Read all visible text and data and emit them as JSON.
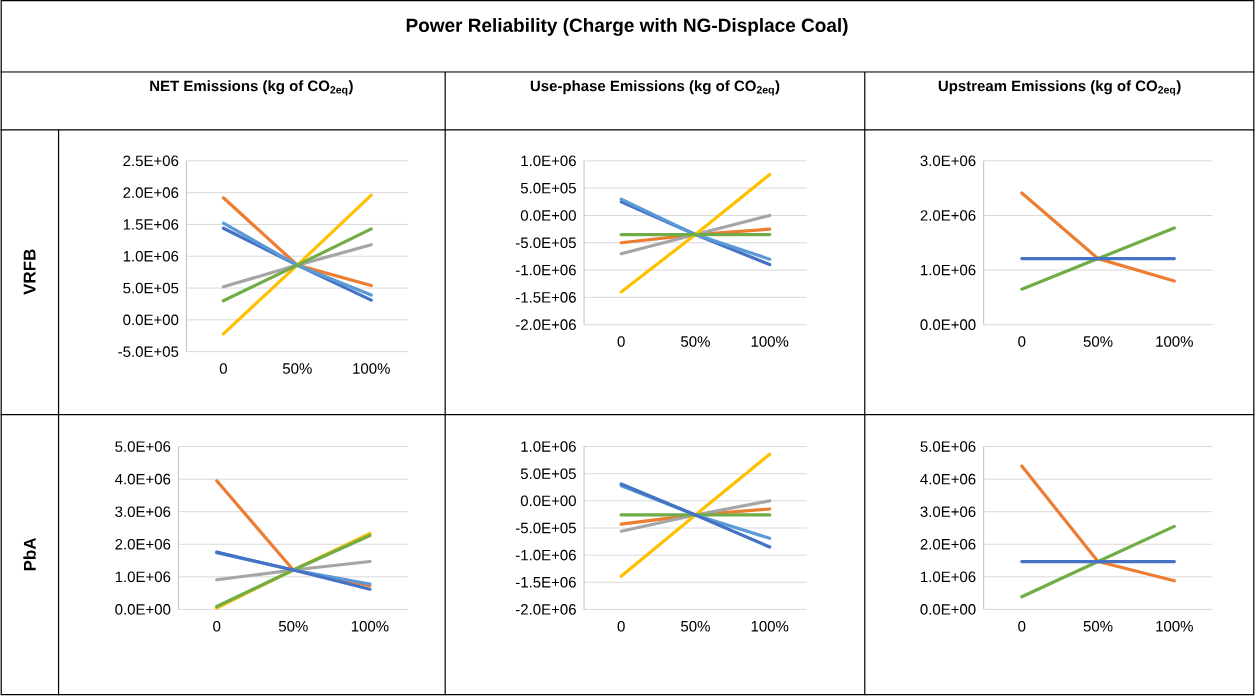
{
  "chart_data": [
    {
      "type": "line",
      "title": "NET Emissions (kg of CO$_{2eq}$)",
      "ylabel": "VRFB",
      "annotations": [
        "Power Reliability (Charge with NG-Displace Coal)"
      ],
      "categories": [
        "0",
        "50%",
        "100%"
      ],
      "ylim": [
        -500000,
        2500000
      ],
      "yticks": [
        {
          "value": -500000,
          "label": "-5.0E+05"
        },
        {
          "value": 0,
          "label": "0.0E+00"
        },
        {
          "value": 500000,
          "label": "5.0E+05"
        },
        {
          "value": 1000000,
          "label": "1.0E+06"
        },
        {
          "value": 1500000,
          "label": "1.5E+06"
        },
        {
          "value": 2000000,
          "label": "2.0E+06"
        },
        {
          "value": 2500000,
          "label": "2.5E+06"
        }
      ],
      "grid": "y",
      "line_style": "solid",
      "series": [
        {
          "color": "#4472c4",
          "values": [
            1440000,
            860000,
            310000
          ]
        },
        {
          "color": "#ed7d31",
          "values": [
            1920000,
            860000,
            540000
          ]
        },
        {
          "color": "#a5a5a5",
          "values": [
            520000,
            860000,
            1180000
          ]
        },
        {
          "color": "#ffc000",
          "values": [
            -220000,
            860000,
            1960000
          ]
        },
        {
          "color": "#5b9bd5",
          "values": [
            1520000,
            860000,
            390000
          ]
        },
        {
          "color": "#70ad47",
          "values": [
            300000,
            860000,
            1430000
          ]
        }
      ]
    },
    {
      "type": "line",
      "title": "Use-phase Emissions (kg of CO$_{2eq}$)",
      "categories": [
        "0",
        "50%",
        "100%"
      ],
      "ylim": [
        -2000000,
        1000000
      ],
      "yticks": [
        {
          "value": -2000000,
          "label": "-2.0E+06"
        },
        {
          "value": -1500000,
          "label": "-1.5E+06"
        },
        {
          "value": -1000000,
          "label": "-1.0E+06"
        },
        {
          "value": -500000,
          "label": "-5.0E+05"
        },
        {
          "value": 0,
          "label": "0.0E+00"
        },
        {
          "value": 500000,
          "label": "5.0E+05"
        },
        {
          "value": 1000000,
          "label": "1.0E+06"
        }
      ],
      "grid": "y",
      "line_style": "solid",
      "series": [
        {
          "color": "#4472c4",
          "values": [
            250000,
            -350000,
            -900000
          ]
        },
        {
          "color": "#ed7d31",
          "values": [
            -500000,
            -350000,
            -250000
          ]
        },
        {
          "color": "#a5a5a5",
          "values": [
            -700000,
            -350000,
            0
          ]
        },
        {
          "color": "#ffc000",
          "values": [
            -1400000,
            -350000,
            750000
          ]
        },
        {
          "color": "#5b9bd5",
          "values": [
            300000,
            -350000,
            -800000
          ]
        },
        {
          "color": "#70ad47",
          "values": [
            -350000,
            -350000,
            -350000
          ]
        }
      ]
    },
    {
      "type": "line",
      "title": "Upstream Emissions (kg of CO$_{2eq}$)",
      "categories": [
        "0",
        "50%",
        "100%"
      ],
      "ylim": [
        0,
        3000000
      ],
      "yticks": [
        {
          "value": 0,
          "label": "0.0E+00"
        },
        {
          "value": 1000000,
          "label": "1.0E+06"
        },
        {
          "value": 2000000,
          "label": "2.0E+06"
        },
        {
          "value": 3000000,
          "label": "3.0E+06"
        }
      ],
      "grid": "y",
      "line_style": "solid",
      "series": [
        {
          "color": "#ed7d31",
          "values": [
            2410000,
            1210000,
            800000
          ]
        },
        {
          "color": "#70ad47",
          "values": [
            650000,
            1210000,
            1770000
          ]
        },
        {
          "color": "#4472c4",
          "values": [
            1210000,
            1210000,
            1210000
          ]
        }
      ]
    },
    {
      "type": "line",
      "ylabel": "PbA",
      "categories": [
        "0",
        "50%",
        "100%"
      ],
      "ylim": [
        0,
        5000000
      ],
      "yticks": [
        {
          "value": 0,
          "label": "0.0E+00"
        },
        {
          "value": 1000000,
          "label": "1.0E+06"
        },
        {
          "value": 2000000,
          "label": "2.0E+06"
        },
        {
          "value": 3000000,
          "label": "3.0E+06"
        },
        {
          "value": 4000000,
          "label": "4.0E+06"
        },
        {
          "value": 5000000,
          "label": "5.0E+06"
        }
      ],
      "grid": "y",
      "line_style": "solid",
      "series": [
        {
          "color": "#ed7d31",
          "values": [
            3950000,
            1210000,
            730000
          ]
        },
        {
          "color": "#a5a5a5",
          "values": [
            910000,
            1210000,
            1470000
          ]
        },
        {
          "color": "#ffc000",
          "values": [
            40000,
            1210000,
            2330000
          ]
        },
        {
          "color": "#70ad47",
          "values": [
            90000,
            1210000,
            2270000
          ]
        },
        {
          "color": "#5b9bd5",
          "values": [
            1740000,
            1210000,
            780000
          ]
        },
        {
          "color": "#4472c4",
          "values": [
            1760000,
            1210000,
            620000
          ]
        }
      ]
    },
    {
      "type": "line",
      "categories": [
        "0",
        "50%",
        "100%"
      ],
      "ylim": [
        -2000000,
        1000000
      ],
      "yticks": [
        {
          "value": -2000000,
          "label": "-2.0E+06"
        },
        {
          "value": -1500000,
          "label": "-1.5E+06"
        },
        {
          "value": -1000000,
          "label": "-1.0E+06"
        },
        {
          "value": -500000,
          "label": "-5.0E+05"
        },
        {
          "value": 0,
          "label": "0.0E+00"
        },
        {
          "value": 500000,
          "label": "5.0E+05"
        },
        {
          "value": 1000000,
          "label": "1.0E+06"
        }
      ],
      "grid": "y",
      "line_style": "solid",
      "series": [
        {
          "color": "#ed7d31",
          "values": [
            -430000,
            -260000,
            -150000
          ]
        },
        {
          "color": "#a5a5a5",
          "values": [
            -560000,
            -260000,
            0
          ]
        },
        {
          "color": "#ffc000",
          "values": [
            -1390000,
            -260000,
            860000
          ]
        },
        {
          "color": "#70ad47",
          "values": [
            -260000,
            -260000,
            -260000
          ]
        },
        {
          "color": "#5b9bd5",
          "values": [
            280000,
            -260000,
            -690000
          ]
        },
        {
          "color": "#4472c4",
          "values": [
            310000,
            -260000,
            -850000
          ]
        }
      ]
    },
    {
      "type": "line",
      "categories": [
        "0",
        "50%",
        "100%"
      ],
      "ylim": [
        0,
        5000000
      ],
      "yticks": [
        {
          "value": 0,
          "label": "0.0E+00"
        },
        {
          "value": 1000000,
          "label": "1.0E+06"
        },
        {
          "value": 2000000,
          "label": "2.0E+06"
        },
        {
          "value": 3000000,
          "label": "3.0E+06"
        },
        {
          "value": 4000000,
          "label": "4.0E+06"
        },
        {
          "value": 5000000,
          "label": "5.0E+06"
        }
      ],
      "grid": "y",
      "line_style": "solid",
      "series": [
        {
          "color": "#ed7d31",
          "values": [
            4400000,
            1470000,
            880000
          ]
        },
        {
          "color": "#70ad47",
          "values": [
            390000,
            1470000,
            2550000
          ]
        },
        {
          "color": "#4472c4",
          "values": [
            1470000,
            1470000,
            1470000
          ]
        }
      ]
    }
  ]
}
